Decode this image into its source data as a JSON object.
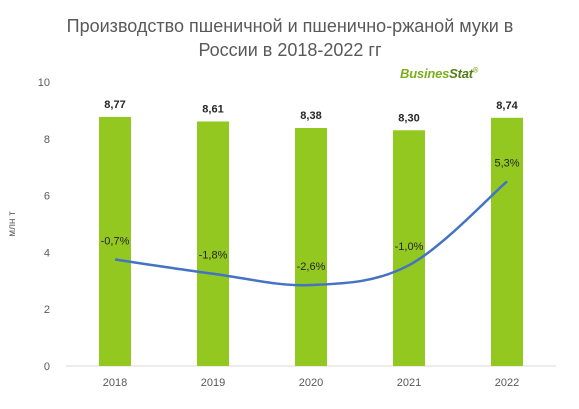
{
  "title_line1": "Производство пшеничной и пшенично-ржаной муки в",
  "title_line2": "России в 2018-2022 гг",
  "logo_text_1": "Busines",
  "logo_text_2": "Stat",
  "logo_mark": "®",
  "colors": {
    "bar": "#92c81f",
    "line": "#4472c4",
    "axis_text": "#595959",
    "grid": "#d9d9d9"
  },
  "chart_data": {
    "type": "bar",
    "categories": [
      "2018",
      "2019",
      "2020",
      "2021",
      "2022"
    ],
    "ylabel": "млн т",
    "ylim": [
      0,
      10
    ],
    "yticks": [
      "0",
      "2",
      "4",
      "6",
      "8",
      "10"
    ],
    "series": [
      {
        "values": [
          8.77,
          8.61,
          8.38,
          8.3,
          8.74
        ],
        "labels": [
          "8,77",
          "8,61",
          "8,38",
          "8,30",
          "8,74"
        ]
      },
      {
        "type": "line",
        "values": [
          3.75,
          3.25,
          2.85,
          3.55,
          6.5
        ],
        "labels": [
          "-0,7%",
          "-1,8%",
          "-2,6%",
          "-1,0%",
          "5,3%"
        ]
      }
    ]
  }
}
